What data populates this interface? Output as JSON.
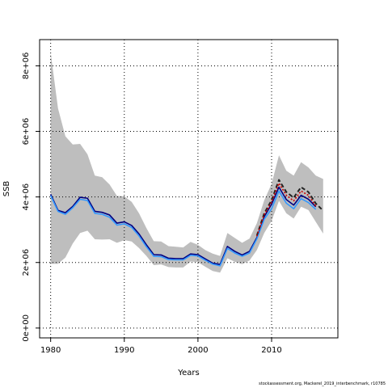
{
  "chart_data": {
    "type": "line",
    "title": "",
    "xlabel": "Years",
    "ylabel": "SSB",
    "xlim": [
      1978.5,
      2019
    ],
    "ylim": [
      -300000,
      8800000
    ],
    "xticks": [
      1980,
      1990,
      2000,
      2010
    ],
    "xtick_labels": [
      "1980",
      "1990",
      "2000",
      "2010"
    ],
    "yticks": [
      0,
      2000000,
      4000000,
      6000000,
      8000000
    ],
    "ytick_labels": [
      "0e+00",
      "2e+06",
      "4e+06",
      "6e+06",
      "8e+06"
    ],
    "grid": true,
    "legend": "none",
    "band": {
      "name": "",
      "color": "#bebebe",
      "years": [
        1980,
        1981,
        1982,
        1983,
        1984,
        1985,
        1986,
        1987,
        1988,
        1989,
        1990,
        1991,
        1992,
        1993,
        1994,
        1995,
        1996,
        1997,
        1998,
        1999,
        2000,
        2001,
        2002,
        2003,
        2004,
        2005,
        2006,
        2007,
        2008,
        2009,
        2010,
        2011,
        2012,
        2013,
        2014,
        2015,
        2016,
        2017
      ],
      "upper": [
        8400000,
        6700000,
        5850000,
        5600000,
        5620000,
        5300000,
        4650000,
        4600000,
        4380000,
        4030000,
        4020000,
        3850000,
        3500000,
        3050000,
        2650000,
        2640000,
        2500000,
        2480000,
        2460000,
        2630000,
        2540000,
        2380000,
        2270000,
        2200000,
        2900000,
        2750000,
        2600000,
        2730000,
        3200000,
        3900000,
        4400000,
        5270000,
        4800000,
        4650000,
        5060000,
        4900000,
        4650000,
        4550000
      ],
      "lower": [
        1960000,
        1960000,
        2150000,
        2580000,
        2900000,
        2970000,
        2710000,
        2700000,
        2710000,
        2600000,
        2680000,
        2640000,
        2440000,
        2200000,
        1920000,
        1940000,
        1860000,
        1850000,
        1850000,
        2030000,
        2010000,
        1870000,
        1740000,
        1690000,
        2130000,
        2020000,
        1950000,
        2060000,
        2380000,
        2900000,
        3270000,
        3880000,
        3500000,
        3340000,
        3700000,
        3600000,
        3240000,
        2880000
      ]
    },
    "series": [
      {
        "name": "",
        "color": "#000080",
        "style": "solid",
        "x": [
          1980,
          1981,
          1982,
          1983,
          1984,
          1985,
          1986,
          1987,
          1988,
          1989,
          1990,
          1991,
          1992,
          1993,
          1994,
          1995,
          1996,
          1997,
          1998,
          1999,
          2000,
          2001,
          2002,
          2003,
          2004,
          2005,
          2006,
          2007,
          2008,
          2009,
          2010,
          2011,
          2012,
          2013,
          2014,
          2015,
          2016
        ],
        "y": [
          4080000,
          3590000,
          3520000,
          3710000,
          3990000,
          3960000,
          3560000,
          3530000,
          3450000,
          3200000,
          3240000,
          3130000,
          2870000,
          2540000,
          2240000,
          2230000,
          2130000,
          2120000,
          2120000,
          2260000,
          2240000,
          2110000,
          1980000,
          1940000,
          2490000,
          2340000,
          2230000,
          2340000,
          2760000,
          3400000,
          3780000,
          4300000,
          3920000,
          3750000,
          4050000,
          3930000,
          3700000
        ]
      },
      {
        "name": "",
        "color": "#3399ff",
        "style": "solid",
        "x": [
          1980,
          1981,
          1982,
          1983,
          1984,
          1985,
          1986,
          1987,
          1988,
          1989,
          1990,
          1991,
          1992,
          1993,
          1994,
          1995,
          1996,
          1997,
          1998,
          1999,
          2000,
          2001,
          2002,
          2003,
          2004,
          2005,
          2006,
          2007,
          2008,
          2009,
          2010,
          2011,
          2012,
          2013,
          2014,
          2015,
          2016
        ],
        "y": [
          4040000,
          3560000,
          3470000,
          3670000,
          3930000,
          3890000,
          3500000,
          3470000,
          3380000,
          3140000,
          3180000,
          3070000,
          2810000,
          2480000,
          2190000,
          2180000,
          2090000,
          2080000,
          2080000,
          2220000,
          2200000,
          2070000,
          1950000,
          1900000,
          2430000,
          2290000,
          2190000,
          2290000,
          2720000,
          3320000,
          3640000,
          4180000,
          3810000,
          3640000,
          3950000,
          3830000,
          3620000
        ]
      },
      {
        "name": "",
        "color": "#222222",
        "style": "dashed",
        "x": [
          2008,
          2009,
          2010,
          2011,
          2012,
          2013,
          2014,
          2015,
          2016,
          2017
        ],
        "y": [
          2820000,
          3500000,
          3900000,
          4520000,
          4150000,
          3980000,
          4300000,
          4150000,
          3800000,
          3580000
        ]
      },
      {
        "name": "",
        "color": "#cc0000",
        "style": "dotted",
        "x": [
          2008,
          2009,
          2010,
          2011,
          2012,
          2013,
          2014,
          2015,
          2016
        ],
        "y": [
          2800000,
          3460000,
          3840000,
          4420000,
          4050000,
          3880000,
          4180000,
          4050000,
          3720000
        ]
      }
    ]
  },
  "footnote": "stockassessment.org, Mackerel_2019_interbenchmark, r10785"
}
